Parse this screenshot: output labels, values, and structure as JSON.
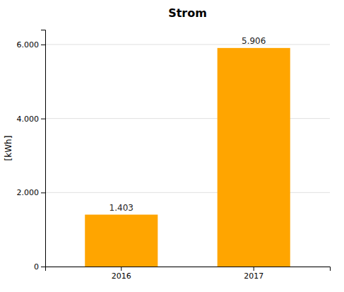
{
  "chart_data": {
    "type": "bar",
    "title": "Strom",
    "ylabel": "[kWh]",
    "categories": [
      "2016",
      "2017"
    ],
    "values": [
      1403,
      5906
    ],
    "value_labels": [
      "1.403",
      "5.906"
    ],
    "color": "#FFA500",
    "ylim": [
      0,
      6400
    ],
    "yticks": [
      0,
      {
        "value": 2000,
        "label": "2.000"
      },
      {
        "value": 4000,
        "label": "4.000"
      },
      {
        "value": 6000,
        "label": "6.000"
      }
    ],
    "grid": true,
    "data_labels": true
  }
}
